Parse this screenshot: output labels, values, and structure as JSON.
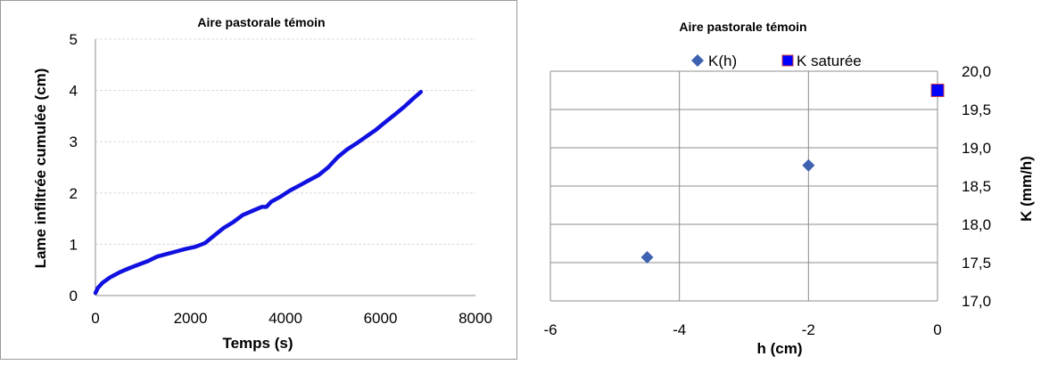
{
  "chart_data": [
    {
      "type": "line",
      "title": "Aire pastorale témoin",
      "xlabel": "Temps (s)",
      "ylabel": "Lame infiltrée cumulée (cm)",
      "xlim": [
        0,
        8000
      ],
      "ylim": [
        0,
        5
      ],
      "x_ticks": [
        "0",
        "2000",
        "4000",
        "6000",
        "8000"
      ],
      "y_ticks": [
        "0",
        "1",
        "2",
        "3",
        "4",
        "5"
      ],
      "grid": "horizontal",
      "legend": "none",
      "color": "#1010e0",
      "series": [
        {
          "x": [
            0,
            50,
            150,
            300,
            500,
            700,
            900,
            1100,
            1300,
            1500,
            1700,
            1900,
            2100,
            2300,
            2500,
            2700,
            2900,
            3100,
            3300,
            3500,
            3600,
            3700,
            3900,
            4100,
            4300,
            4500,
            4700,
            4900,
            5100,
            5300,
            5500,
            5700,
            5900,
            6100,
            6300,
            6500,
            6700,
            6850
          ],
          "y": [
            0.05,
            0.15,
            0.25,
            0.35,
            0.45,
            0.53,
            0.6,
            0.67,
            0.76,
            0.81,
            0.86,
            0.91,
            0.95,
            1.02,
            1.17,
            1.32,
            1.43,
            1.57,
            1.65,
            1.73,
            1.73,
            1.83,
            1.93,
            2.05,
            2.15,
            2.25,
            2.35,
            2.5,
            2.7,
            2.85,
            2.97,
            3.1,
            3.23,
            3.38,
            3.53,
            3.68,
            3.85,
            3.97
          ]
        }
      ]
    },
    {
      "type": "scatter",
      "title": "Aire pastorale témoin",
      "xlabel": "h (cm)",
      "ylabel": "K (mm/h)",
      "xlim": [
        -6,
        0
      ],
      "ylim": [
        17.0,
        20.0
      ],
      "x_ticks": [
        "-6",
        "-4",
        "-2",
        "0"
      ],
      "y_ticks": [
        "17,0",
        "17,5",
        "18,0",
        "18,5",
        "19,0",
        "19,5",
        "20,0"
      ],
      "y_axis_position": "right",
      "grid": "both",
      "legend": "top",
      "series": [
        {
          "name": "K(h)",
          "marker": "diamond",
          "color": "#3f62b0",
          "x": [
            -4.5,
            -2.0
          ],
          "y": [
            17.57,
            18.77
          ]
        },
        {
          "name": "K saturée",
          "marker": "square",
          "color": "#0000ff",
          "edge_color": "#d04040",
          "x": [
            0
          ],
          "y": [
            19.75
          ]
        }
      ]
    }
  ]
}
